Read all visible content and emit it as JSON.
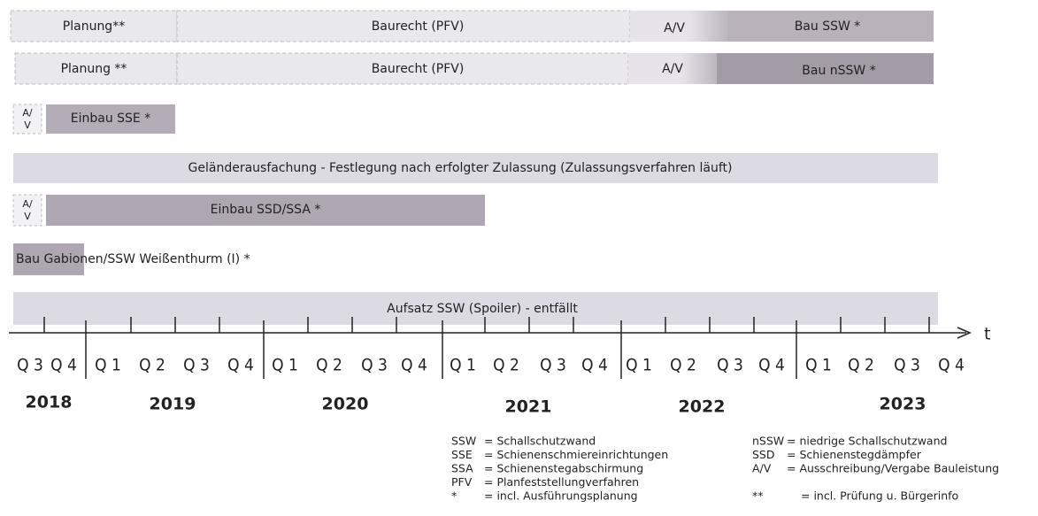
{
  "rows": [
    {
      "segments": [
        "Planung**",
        "Baurecht (PFV)",
        "A/V",
        "Bau SSW *"
      ]
    },
    {
      "segments": [
        "Planung **",
        "Baurecht (PFV)",
        "A/V",
        "Bau nSSW *"
      ]
    },
    {
      "segments": [
        "A/",
        "V",
        "Einbau SSE *"
      ]
    },
    {
      "segments": [
        "Geländerausfachung - Festlegung nach erfolgter Zulassung (Zulassungsverfahren läuft)"
      ]
    },
    {
      "segments": [
        "A/",
        "V",
        "Einbau SSD/SSA *"
      ]
    },
    {
      "segments": [
        "Bau Gabionen/SSW Weißenthurm (I) *"
      ]
    },
    {
      "segments": [
        "Aufsatz SSW (Spoiler) - entfällt"
      ]
    }
  ],
  "timeline": {
    "axis_label": "t",
    "quarters": [
      "Q 3",
      "Q 4",
      "Q 1",
      "Q 2",
      "Q 3",
      "Q 4",
      "Q 1",
      "Q 2",
      "Q 3",
      "Q 4",
      "Q 1",
      "Q 2",
      "Q 3",
      "Q 4",
      "Q 1",
      "Q 2",
      "Q 3",
      "Q 4",
      "Q 1",
      "Q 2",
      "Q 3",
      "Q 4"
    ],
    "years": [
      "2018",
      "2019",
      "2020",
      "2021",
      "2022",
      "2023"
    ]
  },
  "legend": {
    "left": [
      {
        "abbr": "SSW",
        "text": "= Schallschutzwand"
      },
      {
        "abbr": "SSE",
        "text": "= Schienenschmiereinrichtungen"
      },
      {
        "abbr": "SSA",
        "text": "= Schienenstegabschirmung"
      },
      {
        "abbr": "PFV",
        "text": "= Planfeststellungverfahren"
      },
      {
        "abbr": "*",
        "text": "= incl. Ausführungsplanung"
      }
    ],
    "right": [
      {
        "abbr": "nSSW",
        "text": "= niedrige Schallschutzwand"
      },
      {
        "abbr": "SSD",
        "text": "= Schienenstegdämpfer"
      },
      {
        "abbr": "A/V",
        "text": "= Ausschreibung/Vergabe Bauleistung"
      },
      {
        "abbr": "**",
        "text": "= incl. Prüfung u. Bürgerinfo"
      }
    ]
  }
}
